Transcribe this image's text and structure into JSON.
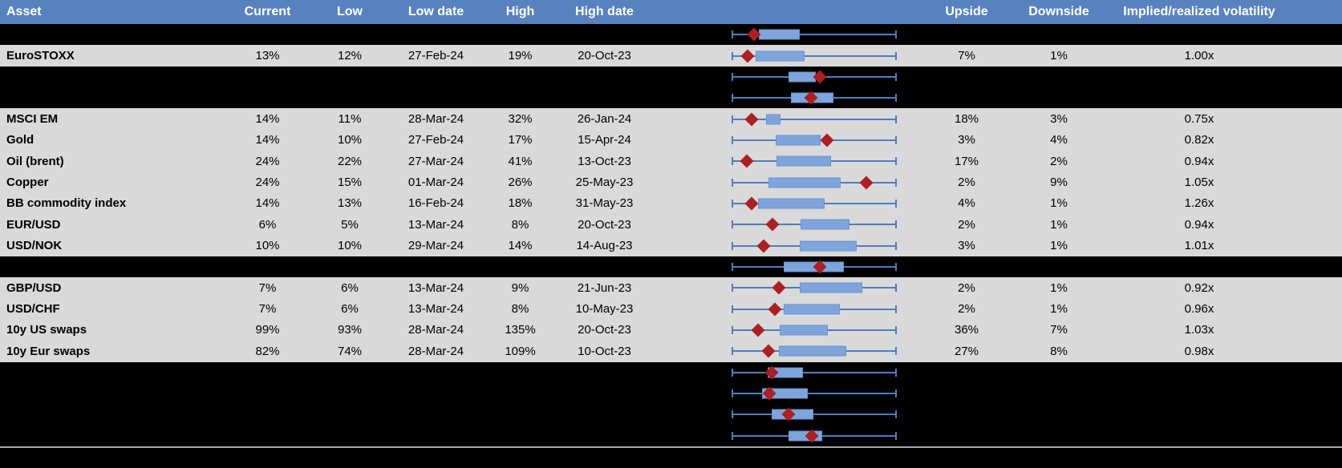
{
  "header": {
    "columns": {
      "asset": "Asset",
      "current": "Current",
      "low": "Low",
      "low_date": "Low date",
      "high": "High",
      "high_date": "High date",
      "chart": "",
      "upside": "Upside",
      "downside": "Downside",
      "implied_realized": "Implied/realized volatility"
    }
  },
  "colors": {
    "header_bg": "#5882BE",
    "row_bg": "#D9D9D9",
    "spacer_bg": "#000000",
    "box_fill": "#7FA4DB",
    "box_border": "#6A94CF",
    "whisker": "#4D7EBF",
    "diamond": "#AA2025",
    "separator": "#A8A8A8"
  },
  "boxplot_axis_note": "box_start/box_end/diamond are % positions along the whisker span (low-to-high range of each asset's 1y volatility)",
  "rows": [
    {
      "type": "spacer",
      "boxplot": {
        "box_start": 16.5,
        "box_end": 41.3,
        "diamond": 13.6
      }
    },
    {
      "type": "data",
      "asset": "EuroSTOXX",
      "current": "13%",
      "low": "12%",
      "low_date": "27-Feb-24",
      "high": "19%",
      "high_date": "20-Oct-23",
      "upside": "7%",
      "downside": "1%",
      "implied_realized": "1.00x",
      "boxplot": {
        "box_start": 14.6,
        "box_end": 44.2,
        "diamond": 9.7
      }
    },
    {
      "type": "spacer",
      "boxplot": {
        "box_start": 34.5,
        "box_end": 51.0,
        "diamond": 53.4
      }
    },
    {
      "type": "spacer",
      "boxplot": {
        "box_start": 35.9,
        "box_end": 61.7,
        "diamond": 48.1
      }
    },
    {
      "type": "data",
      "asset": "MSCI EM",
      "current": "14%",
      "low": "11%",
      "low_date": "28-Mar-24",
      "high": "32%",
      "high_date": "26-Jan-24",
      "upside": "18%",
      "downside": "3%",
      "implied_realized": "0.75x",
      "boxplot": {
        "box_start": 20.9,
        "box_end": 29.6,
        "diamond": 12.1
      }
    },
    {
      "type": "data",
      "asset": "Gold",
      "current": "14%",
      "low": "10%",
      "low_date": "27-Feb-24",
      "high": "17%",
      "high_date": "15-Apr-24",
      "upside": "3%",
      "downside": "4%",
      "implied_realized": "0.82x",
      "boxplot": {
        "box_start": 26.7,
        "box_end": 53.9,
        "diamond": 57.8
      }
    },
    {
      "type": "data",
      "asset": "Oil (brent)",
      "current": "24%",
      "low": "22%",
      "low_date": "27-Mar-24",
      "high": "41%",
      "high_date": "13-Oct-23",
      "upside": "17%",
      "downside": "2%",
      "implied_realized": "0.94x",
      "boxplot": {
        "box_start": 27.2,
        "box_end": 60.2,
        "diamond": 9.2
      }
    },
    {
      "type": "data",
      "asset": "Copper",
      "current": "24%",
      "low": "15%",
      "low_date": "01-Mar-24",
      "high": "26%",
      "high_date": "25-May-23",
      "upside": "2%",
      "downside": "9%",
      "implied_realized": "1.05x",
      "boxplot": {
        "box_start": 22.3,
        "box_end": 66.0,
        "diamond": 81.6
      }
    },
    {
      "type": "data",
      "asset": "BB commodity index",
      "current": "14%",
      "low": "13%",
      "low_date": "16-Feb-24",
      "high": "18%",
      "high_date": "31-May-23",
      "upside": "4%",
      "downside": "1%",
      "implied_realized": "1.26x",
      "boxplot": {
        "box_start": 16.0,
        "box_end": 56.3,
        "diamond": 12.1
      }
    },
    {
      "type": "data",
      "asset": "EUR/USD",
      "current": "6%",
      "low": "5%",
      "low_date": "13-Mar-24",
      "high": "8%",
      "high_date": "20-Oct-23",
      "upside": "2%",
      "downside": "1%",
      "implied_realized": "0.94x",
      "boxplot": {
        "box_start": 41.7,
        "box_end": 71.3,
        "diamond": 24.8
      }
    },
    {
      "type": "data",
      "asset": "USD/NOK",
      "current": "10%",
      "low": "10%",
      "low_date": "29-Mar-24",
      "high": "14%",
      "high_date": "14-Aug-23",
      "upside": "3%",
      "downside": "1%",
      "implied_realized": "1.01x",
      "boxplot": {
        "box_start": 41.3,
        "box_end": 75.7,
        "diamond": 19.4
      }
    },
    {
      "type": "spacer",
      "boxplot": {
        "box_start": 31.6,
        "box_end": 68.0,
        "diamond": 53.4
      }
    },
    {
      "type": "data",
      "asset": "GBP/USD",
      "current": "7%",
      "low": "6%",
      "low_date": "13-Mar-24",
      "high": "9%",
      "high_date": "21-Jun-23",
      "upside": "2%",
      "downside": "1%",
      "implied_realized": "0.92x",
      "boxplot": {
        "box_start": 41.3,
        "box_end": 79.1,
        "diamond": 28.6
      }
    },
    {
      "type": "data",
      "asset": "USD/CHF",
      "current": "7%",
      "low": "6%",
      "low_date": "13-Mar-24",
      "high": "8%",
      "high_date": "10-May-23",
      "upside": "2%",
      "downside": "1%",
      "implied_realized": "0.96x",
      "boxplot": {
        "box_start": 31.6,
        "box_end": 65.5,
        "diamond": 26.2
      }
    },
    {
      "type": "data",
      "asset": "10y US swaps",
      "current": "99%",
      "low": "93%",
      "low_date": "28-Mar-24",
      "high": "135%",
      "high_date": "20-Oct-23",
      "upside": "36%",
      "downside": "7%",
      "implied_realized": "1.03x",
      "boxplot": {
        "box_start": 29.1,
        "box_end": 58.3,
        "diamond": 16.0
      }
    },
    {
      "type": "data",
      "asset": "10y Eur swaps",
      "current": "82%",
      "low": "74%",
      "low_date": "28-Mar-24",
      "high": "109%",
      "high_date": "10-Oct-23",
      "upside": "27%",
      "downside": "8%",
      "implied_realized": "0.98x",
      "boxplot": {
        "box_start": 28.6,
        "box_end": 69.4,
        "diamond": 22.3
      }
    },
    {
      "type": "spacer",
      "boxplot": {
        "box_start": 21.8,
        "box_end": 43.2,
        "diamond": 24.3
      }
    },
    {
      "type": "spacer",
      "boxplot": {
        "box_start": 18.4,
        "box_end": 46.1,
        "diamond": 22.8
      }
    },
    {
      "type": "spacer",
      "boxplot": {
        "box_start": 24.3,
        "box_end": 49.5,
        "diamond": 34.5
      }
    },
    {
      "type": "spacer",
      "boxplot": {
        "box_start": 34.5,
        "box_end": 54.9,
        "diamond": 48.5
      }
    }
  ]
}
